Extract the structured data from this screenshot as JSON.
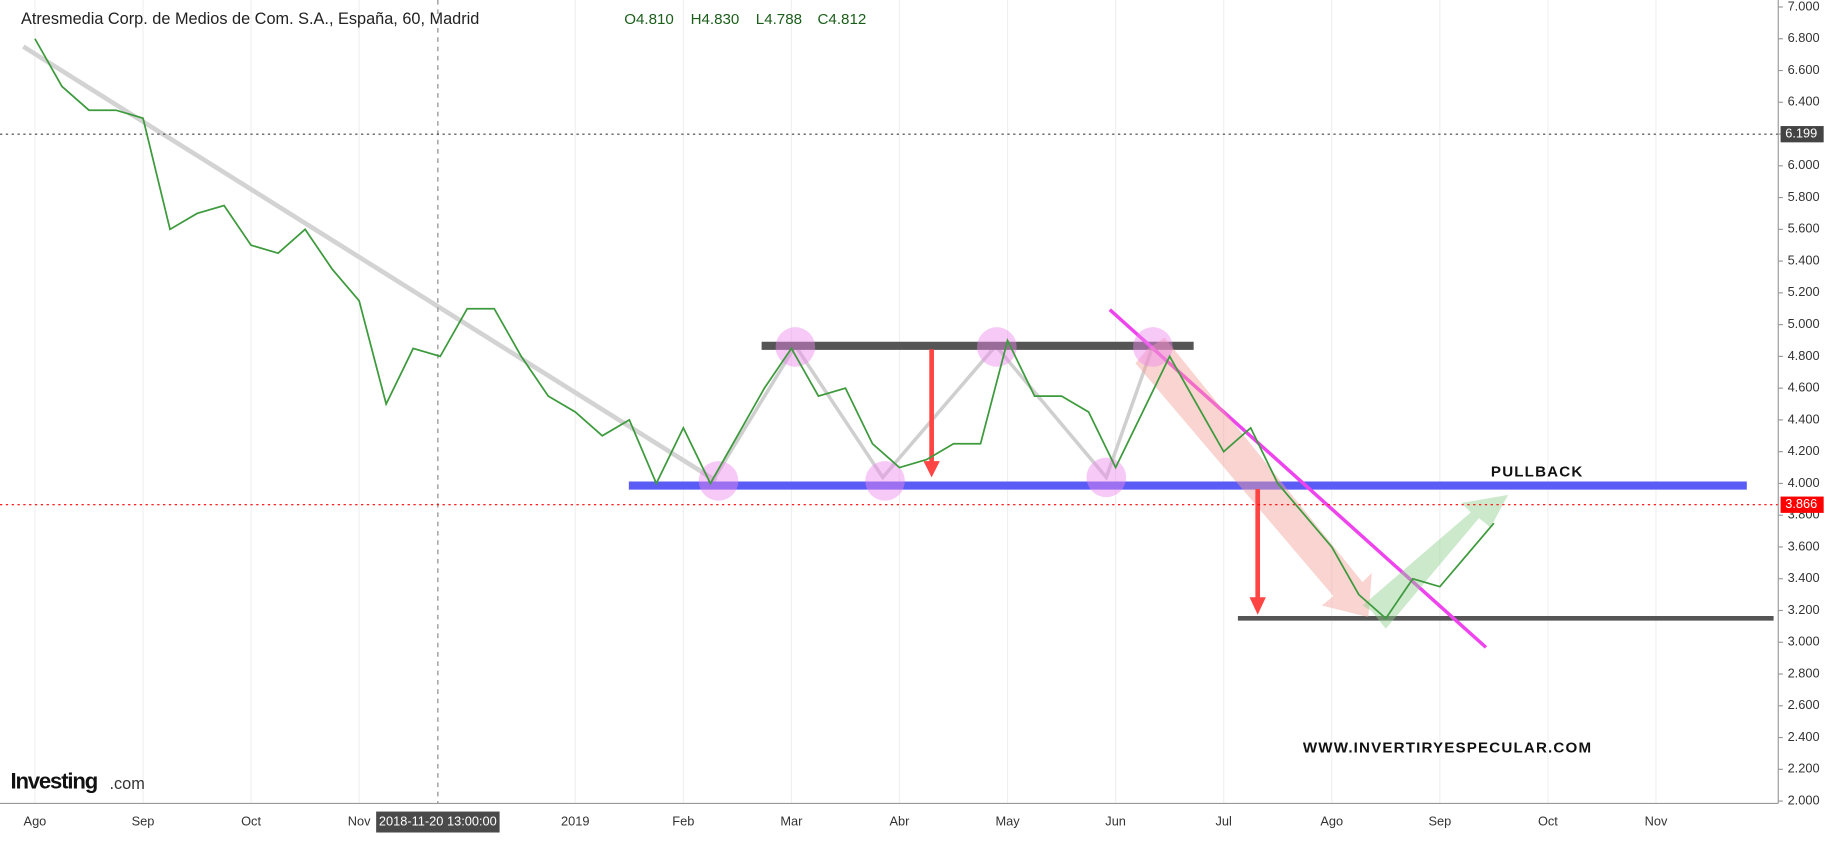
{
  "chart_data": {
    "type": "line",
    "title": "Atresmedia Corp. de Medios de Com. S.A., España, 60, Madrid",
    "ohlc": [
      "O4.810",
      "H4.830",
      "L4.788",
      "C4.812"
    ],
    "categories": [
      "Ago",
      null,
      null,
      null,
      "Sep",
      null,
      null,
      null,
      "Oct",
      null,
      null,
      null,
      "Nov",
      null,
      null,
      null,
      null,
      null,
      null,
      null,
      "2019",
      null,
      null,
      null,
      "Feb",
      null,
      null,
      null,
      "Mar",
      null,
      null,
      null,
      "Abr",
      null,
      null,
      null,
      "May",
      null,
      null,
      null,
      "Jun",
      null,
      null,
      null,
      "Jul",
      null,
      null,
      null,
      "Ago",
      null,
      null,
      null,
      "Sep",
      null,
      null,
      null,
      "Oct",
      null,
      null,
      null,
      "Nov",
      null,
      null,
      null
    ],
    "values": [
      6.8,
      6.5,
      6.35,
      6.35,
      6.3,
      5.6,
      5.7,
      5.75,
      5.5,
      5.45,
      5.6,
      5.35,
      5.15,
      4.5,
      4.85,
      4.8,
      5.1,
      5.1,
      4.8,
      4.55,
      4.45,
      4.3,
      4.4,
      4.0,
      4.35,
      4.0,
      4.3,
      4.6,
      4.85,
      4.55,
      4.6,
      4.25,
      4.1,
      4.15,
      4.25,
      4.25,
      4.9,
      4.55,
      4.55,
      4.45,
      4.1,
      4.45,
      4.8,
      4.5,
      4.2,
      4.35,
      4.0,
      3.8,
      3.6,
      3.3,
      3.15,
      3.4,
      3.35,
      3.55,
      3.75,
      null,
      null,
      null,
      null,
      null,
      null,
      null,
      null,
      null
    ],
    "color": "#3d9a3d",
    "ylim": [
      2.0,
      7.0
    ],
    "yticks": [
      {
        "value": 2.0,
        "label": "2.000"
      },
      {
        "value": 2.2,
        "label": "2.200"
      },
      {
        "value": 2.4,
        "label": "2.400"
      },
      {
        "value": 2.6,
        "label": "2.600"
      },
      {
        "value": 2.8,
        "label": "2.800"
      },
      {
        "value": 3.0,
        "label": "3.000"
      },
      {
        "value": 3.2,
        "label": "3.200"
      },
      {
        "value": 3.4,
        "label": "3.400"
      },
      {
        "value": 3.6,
        "label": "3.600"
      },
      {
        "value": 3.8,
        "label": "3.800"
      },
      {
        "value": 4.0,
        "label": "4.000"
      },
      {
        "value": 4.2,
        "label": "4.200"
      },
      {
        "value": 4.4,
        "label": "4.400"
      },
      {
        "value": 4.6,
        "label": "4.600"
      },
      {
        "value": 4.8,
        "label": "4.800"
      },
      {
        "value": 5.0,
        "label": "5.000"
      },
      {
        "value": 5.2,
        "label": "5.200"
      },
      {
        "value": 5.4,
        "label": "5.400"
      },
      {
        "value": 5.6,
        "label": "5.600"
      },
      {
        "value": 5.8,
        "label": "5.800"
      },
      {
        "value": 6.0,
        "label": "6.000"
      },
      {
        "value": 6.2,
        "label": "6.200"
      },
      {
        "value": 6.4,
        "label": "6.400"
      },
      {
        "value": 6.6,
        "label": "6.600"
      },
      {
        "value": 6.8,
        "label": "6.800"
      },
      {
        "value": 7.0,
        "label": "7.000"
      }
    ],
    "grid": true,
    "price_lines": [
      {
        "value": 6.199,
        "label": "6.199",
        "color": "#444444"
      },
      {
        "value": 3.866,
        "label": "3.866",
        "color": "#ff0000"
      }
    ],
    "crosshair_x_label": "2018-11-20 13:00:00",
    "annotations": [
      "PULLBACK",
      "WWW.INVERTIRYESPECULAR.COM"
    ],
    "logo": "Investing",
    "logo_suffix": ".com"
  }
}
